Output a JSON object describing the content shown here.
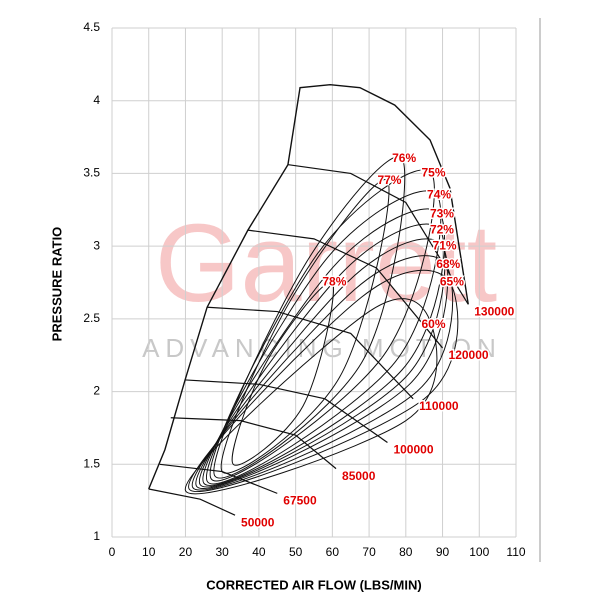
{
  "chart_data": {
    "type": "compressor_map",
    "xlabel": "CORRECTED AIR FLOW (LBS/MIN)",
    "ylabel": "PRESSURE RATIO",
    "watermark": "Garrett",
    "watermark_sub": "ADVANCING MOTION",
    "xlim": [
      0,
      110
    ],
    "xticks": [
      0,
      10,
      20,
      30,
      40,
      50,
      60,
      70,
      80,
      90,
      100,
      110
    ],
    "ylim": [
      1,
      4.5
    ],
    "yticks": [
      1,
      1.5,
      2,
      2.5,
      3,
      3.5,
      4,
      4.5
    ],
    "grid": true,
    "line_color": "#111111",
    "label_color": "#e00000",
    "surge_line": {
      "x": [
        10,
        14.4,
        19.9,
        25.9,
        37,
        47.9,
        51.2,
        59.4,
        67.5,
        77,
        86.6,
        92,
        97
      ],
      "y": [
        1.33,
        1.6,
        2.08,
        2.58,
        3.11,
        3.56,
        4.09,
        4.11,
        4.09,
        3.97,
        3.73,
        3.4,
        2.6
      ]
    },
    "speed_lines": [
      {
        "name": "50000",
        "x": [
          10,
          24,
          33.5
        ],
        "y": [
          1.33,
          1.26,
          1.15
        ]
      },
      {
        "name": "67500",
        "x": [
          13,
          30,
          45
        ],
        "y": [
          1.5,
          1.45,
          1.3
        ]
      },
      {
        "name": "85000",
        "x": [
          16,
          35,
          50,
          61
        ],
        "y": [
          1.82,
          1.8,
          1.7,
          1.47
        ]
      },
      {
        "name": "100000",
        "x": [
          20,
          40,
          58,
          75
        ],
        "y": [
          2.08,
          2.05,
          1.95,
          1.65
        ]
      },
      {
        "name": "110000",
        "x": [
          26,
          45,
          65,
          82
        ],
        "y": [
          2.58,
          2.55,
          2.4,
          1.95
        ]
      },
      {
        "name": "120000",
        "x": [
          37,
          55,
          72,
          90
        ],
        "y": [
          3.11,
          3.05,
          2.85,
          2.3
        ]
      },
      {
        "name": "130000",
        "x": [
          48,
          65,
          80,
          97
        ],
        "y": [
          3.56,
          3.5,
          3.3,
          2.6
        ]
      }
    ],
    "islands": [
      {
        "name": "78%",
        "x": [
          60,
          42,
          33,
          52
        ],
        "y": [
          2.75,
          2.2,
          1.5,
          1.9
        ]
      },
      {
        "name": "77%",
        "x": [
          75,
          48,
          30,
          62
        ],
        "y": [
          3.45,
          2.6,
          1.45,
          2.1
        ]
      },
      {
        "name": "76%",
        "x": [
          79,
          52,
          28,
          68
        ],
        "y": [
          3.6,
          2.85,
          1.42,
          2.2
        ]
      },
      {
        "name": "75%",
        "x": [
          87,
          56,
          27,
          74
        ],
        "y": [
          3.5,
          2.95,
          1.4,
          2.25
        ]
      },
      {
        "name": "74%",
        "x": [
          88.5,
          58,
          26,
          77
        ],
        "y": [
          3.35,
          2.9,
          1.38,
          2.2
        ]
      },
      {
        "name": "73%",
        "x": [
          89.3,
          60,
          25,
          79
        ],
        "y": [
          3.22,
          2.85,
          1.37,
          2.15
        ]
      },
      {
        "name": "72%",
        "x": [
          89.3,
          62,
          24,
          80
        ],
        "y": [
          3.11,
          2.8,
          1.36,
          2.1
        ]
      },
      {
        "name": "71%",
        "x": [
          90,
          64,
          23,
          81
        ],
        "y": [
          3.0,
          2.75,
          1.35,
          2.05
        ]
      },
      {
        "name": "68%",
        "x": [
          91,
          66,
          22,
          83
        ],
        "y": [
          2.87,
          2.7,
          1.34,
          2.0
        ]
      },
      {
        "name": "65%",
        "x": [
          92,
          68,
          21,
          85
        ],
        "y": [
          2.75,
          2.65,
          1.33,
          1.95
        ]
      },
      {
        "name": "60%",
        "x": [
          87,
          70,
          20,
          80
        ],
        "y": [
          2.46,
          2.55,
          1.32,
          1.8
        ]
      }
    ]
  }
}
